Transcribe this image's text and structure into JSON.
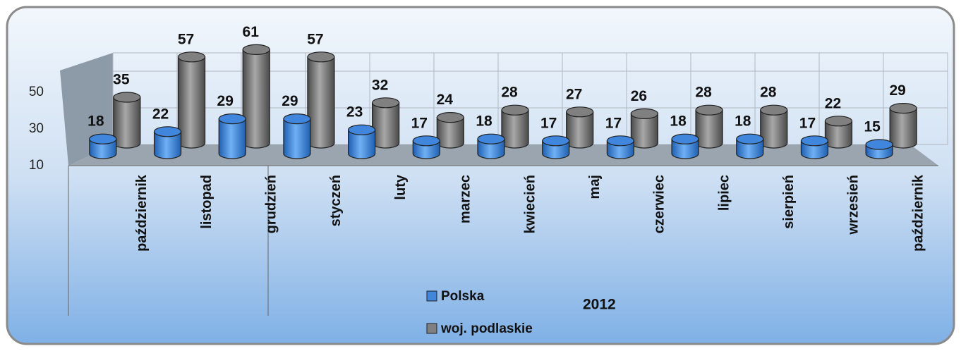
{
  "chart_data": {
    "type": "bar3d",
    "categories": [
      "październik",
      "listopad",
      "grudzień",
      "styczeń",
      "luty",
      "marzec",
      "kwiecień",
      "maj",
      "czerwiec",
      "lipiec",
      "sierpień",
      "wrzesień",
      "październik"
    ],
    "series": [
      {
        "name": "Polska",
        "color": "#3f86dc",
        "values": [
          18,
          22,
          29,
          29,
          23,
          17,
          18,
          17,
          17,
          18,
          18,
          17,
          15
        ]
      },
      {
        "name": "woj. podlaskie",
        "color": "#808080",
        "values": [
          35,
          57,
          61,
          57,
          32,
          24,
          28,
          27,
          26,
          28,
          28,
          22,
          29
        ]
      }
    ],
    "annotation": "2012",
    "ylim": [
      10,
      70
    ],
    "yticks": [
      10,
      30,
      50
    ],
    "grid": true
  }
}
